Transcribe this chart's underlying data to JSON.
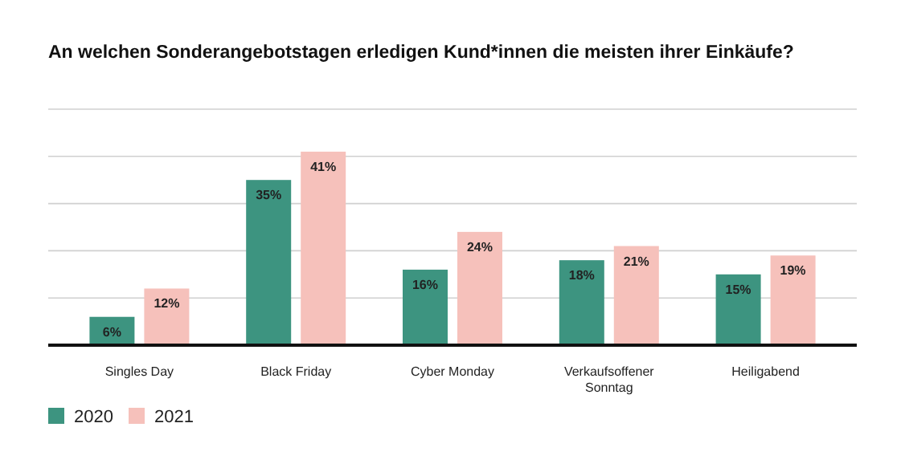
{
  "chart_data": {
    "type": "bar",
    "title": "An welchen Sonderangebotstagen erledigen Kund*innen die meisten ihrer Einkäufe?",
    "categories": [
      "Singles Day",
      "Black Friday",
      "Cyber Monday",
      "Verkaufsoffener Sonntag",
      "Heiligabend"
    ],
    "series": [
      {
        "name": "2020",
        "color": "#3d9480",
        "values": [
          6,
          35,
          16,
          18,
          15
        ],
        "value_labels": [
          "6%",
          "35%",
          "16%",
          "18%",
          "15%"
        ]
      },
      {
        "name": "2021",
        "color": "#f6c1bb",
        "values": [
          12,
          41,
          24,
          21,
          19
        ],
        "value_labels": [
          "12%",
          "41%",
          "24%",
          "21%",
          "19%"
        ]
      }
    ],
    "ylim": [
      0,
      50
    ],
    "yticks": [
      {
        "value": 0,
        "label": null
      },
      {
        "value": 10,
        "label": null
      },
      {
        "value": 20,
        "label": null
      },
      {
        "value": 30,
        "label": null
      },
      {
        "value": 40,
        "label": null
      },
      {
        "value": 50,
        "label": null
      }
    ],
    "tick_labels": "x",
    "grid": "y",
    "legend": "bottom left"
  }
}
